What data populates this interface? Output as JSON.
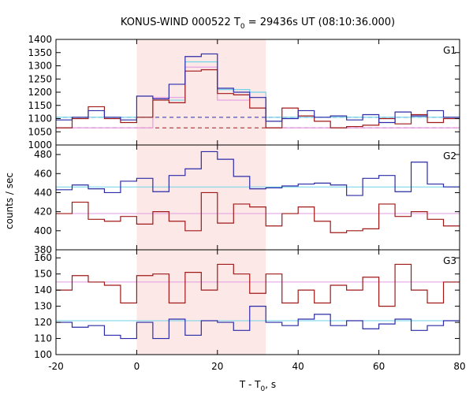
{
  "chart_data": {
    "type": "line",
    "title_parts": {
      "main": "KONUS-WIND 000522 T",
      "sub": "0",
      "rest": " = 29436s UT (08:10:36.000)"
    },
    "xlabel_parts": {
      "main": "T - T",
      "sub": "0",
      "rest": ", s"
    },
    "ylabel": "counts / sec",
    "xlim": [
      -20,
      80
    ],
    "xticks": [
      "-20",
      "0",
      "20",
      "40",
      "60",
      "80"
    ],
    "shaded_interval": {
      "x": [
        0,
        32
      ],
      "color": "#fde8e8"
    },
    "colors": {
      "dark_red": "#a01818",
      "blue": "#2b2ba8",
      "light_blue": "#6fd3e8",
      "pink": "#e39be3"
    },
    "panels": [
      {
        "label": "G1",
        "ylim": [
          1000,
          1400
        ],
        "yticks": [
          "1000",
          "1050",
          "1100",
          "1150",
          "1200",
          "1250",
          "1300",
          "1350",
          "1400"
        ],
        "step_edges": [
          -20,
          -16,
          -12,
          -8,
          -4,
          0,
          4,
          8,
          12,
          16,
          20,
          24,
          28,
          32,
          36,
          40,
          44,
          48,
          52,
          56,
          60,
          64,
          68,
          72,
          76,
          80
        ],
        "red_series": [
          1065,
          1100,
          1145,
          1100,
          1085,
          1105,
          1170,
          1160,
          1280,
          1285,
          1195,
          1190,
          1140,
          1065,
          1140,
          1110,
          1090,
          1065,
          1070,
          1075,
          1100,
          1080,
          1115,
          1085,
          1100
        ],
        "blue_series": [
          1095,
          1105,
          1130,
          1105,
          1095,
          1185,
          1175,
          1230,
          1335,
          1345,
          1215,
          1200,
          1180,
          1090,
          1100,
          1130,
          1105,
          1110,
          1095,
          1115,
          1085,
          1125,
          1110,
          1130,
          1105
        ],
        "light_blue_step": {
          "edges": [
            -20,
            0,
            4,
            8,
            12,
            16,
            20,
            24,
            28,
            32,
            80
          ],
          "values": [
            1105,
            1105,
            1170,
            1170,
            1315,
            1315,
            1210,
            1210,
            1200,
            1105
          ]
        },
        "pink_step": {
          "edges": [
            -20,
            0,
            4,
            8,
            12,
            16,
            20,
            24,
            28,
            32,
            80
          ],
          "values": [
            1065,
            1065,
            1180,
            1180,
            1295,
            1295,
            1170,
            1170,
            1180,
            1065
          ]
        },
        "blue_dashed_baseline": 1105,
        "red_dashed_baseline": 1065
      },
      {
        "label": "G2",
        "ylim": [
          380,
          490
        ],
        "yticks": [
          "380",
          "400",
          "420",
          "440",
          "460",
          "480"
        ],
        "step_edges": [
          -20,
          -16,
          -12,
          -8,
          -4,
          0,
          4,
          8,
          12,
          16,
          20,
          24,
          28,
          32,
          36,
          40,
          44,
          48,
          52,
          56,
          60,
          64,
          68,
          72,
          76,
          80
        ],
        "red_series": [
          418,
          430,
          412,
          410,
          415,
          407,
          420,
          410,
          400,
          440,
          408,
          428,
          425,
          405,
          418,
          425,
          410,
          398,
          400,
          402,
          428,
          415,
          420,
          412,
          405
        ],
        "blue_series": [
          443,
          448,
          444,
          440,
          452,
          455,
          441,
          458,
          465,
          483,
          475,
          457,
          444,
          445,
          447,
          449,
          450,
          448,
          437,
          455,
          458,
          441,
          472,
          449,
          446
        ],
        "light_blue_baseline": 446,
        "pink_baseline": 418
      },
      {
        "label": "G3",
        "ylim": [
          100,
          165
        ],
        "yticks": [
          "100",
          "110",
          "120",
          "130",
          "140",
          "150",
          "160"
        ],
        "step_edges": [
          -20,
          -16,
          -12,
          -8,
          -4,
          0,
          4,
          8,
          12,
          16,
          20,
          24,
          28,
          32,
          36,
          40,
          44,
          48,
          52,
          56,
          60,
          64,
          68,
          72,
          76,
          80
        ],
        "red_series": [
          140,
          149,
          145,
          143,
          132,
          149,
          150,
          132,
          151,
          140,
          156,
          150,
          138,
          150,
          132,
          140,
          132,
          143,
          140,
          148,
          130,
          156,
          140,
          132,
          145
        ],
        "blue_series": [
          120,
          117,
          118,
          112,
          110,
          120,
          110,
          122,
          112,
          121,
          120,
          115,
          130,
          120,
          118,
          122,
          125,
          118,
          121,
          116,
          119,
          122,
          115,
          118,
          121
        ],
        "light_blue_baseline": 121,
        "pink_baseline": 145
      }
    ]
  }
}
